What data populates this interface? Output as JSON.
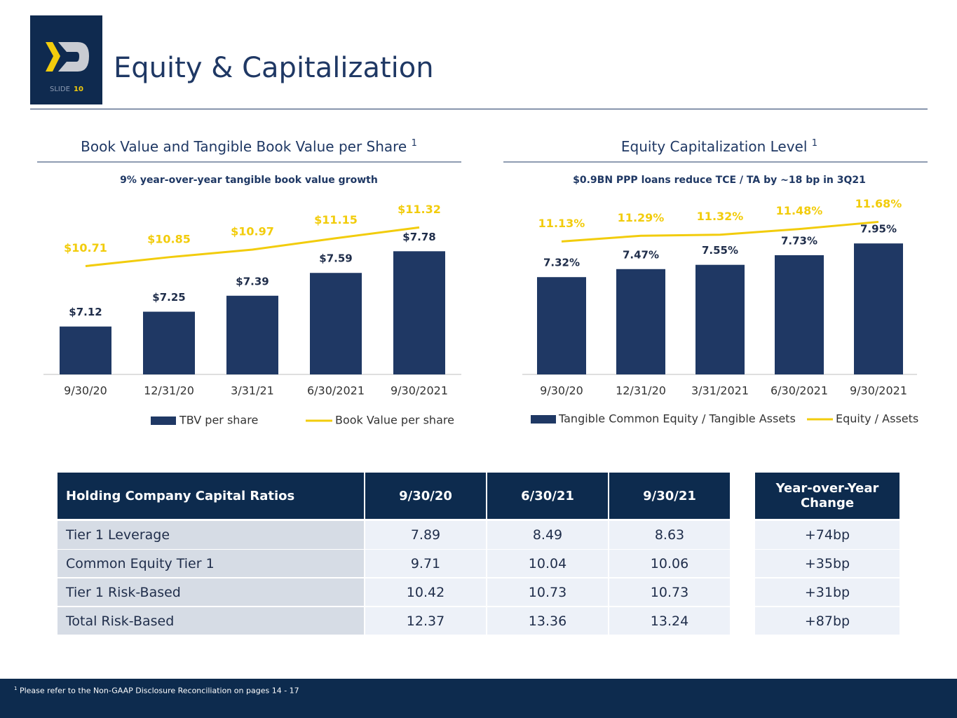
{
  "header": {
    "logo_label": "SLIDE",
    "slide_number": "10",
    "title": "Equity & Capitalization"
  },
  "chart_data": [
    {
      "type": "combo",
      "title": "Book Value and Tangible Book Value per Share",
      "title_note": "1",
      "subtitle": "9% year-over-year tangible book value growth",
      "categories": [
        "9/30/20",
        "12/31/20",
        "3/31/21",
        "6/30/2021",
        "9/30/2021"
      ],
      "ylim": [
        6.7,
        8.2
      ],
      "y2lim": [
        9,
        11.7
      ],
      "series": [
        {
          "name": "TBV per share",
          "type": "bar",
          "color": "#1f3864",
          "values": [
            7.12,
            7.25,
            7.39,
            7.59,
            7.78
          ],
          "value_labels": [
            "$7.12",
            "$7.25",
            "$7.39",
            "$7.59",
            "$7.78"
          ]
        },
        {
          "name": "Book Value per share",
          "type": "line",
          "axis": "y2",
          "color": "#f2cc0c",
          "values": [
            10.71,
            10.85,
            10.97,
            11.15,
            11.32
          ],
          "value_labels": [
            "$10.71",
            "$10.85",
            "$10.97",
            "$11.15",
            "$11.32"
          ]
        }
      ]
    },
    {
      "type": "combo",
      "title": "Equity Capitalization Level",
      "title_note": "1",
      "subtitle": "$0.9BN PPP loans reduce TCE / TA by ~18 bp in 3Q21",
      "categories": [
        "9/30/20",
        "12/31/20",
        "3/31/2021",
        "6/30/2021",
        "9/30/2021"
      ],
      "ylim": [
        5.5,
        8.7
      ],
      "y2lim": [
        7.4,
        12.2
      ],
      "series": [
        {
          "name": "Tangible Common Equity / Tangible Assets",
          "type": "bar",
          "color": "#1f3864",
          "values": [
            7.32,
            7.47,
            7.55,
            7.73,
            7.95
          ],
          "value_labels": [
            "7.32%",
            "7.47%",
            "7.55%",
            "7.73%",
            "7.95%"
          ]
        },
        {
          "name": "Equity / Assets",
          "type": "line",
          "axis": "y2",
          "color": "#f2cc0c",
          "values": [
            11.13,
            11.29,
            11.32,
            11.48,
            11.68
          ],
          "value_labels": [
            "11.13%",
            "11.29%",
            "11.32%",
            "11.48%",
            "11.68%"
          ]
        }
      ]
    }
  ],
  "table": {
    "columns": [
      "Holding Company Capital Ratios",
      "9/30/20",
      "6/30/21",
      "9/30/21",
      "Year-over-Year Change"
    ],
    "rows": [
      [
        "Tier 1 Leverage",
        "7.89",
        "8.49",
        "8.63",
        "+74bp"
      ],
      [
        "Common Equity Tier 1",
        "9.71",
        "10.04",
        "10.06",
        "+35bp"
      ],
      [
        "Tier 1 Risk-Based",
        "10.42",
        "10.73",
        "10.73",
        "+31bp"
      ],
      [
        "Total Risk-Based",
        "12.37",
        "13.36",
        "13.24",
        "+87bp"
      ]
    ]
  },
  "footer": {
    "note_mark": "1",
    "note": "Please refer to the Non-GAAP Disclosure Reconciliation on pages 14 - 17"
  }
}
